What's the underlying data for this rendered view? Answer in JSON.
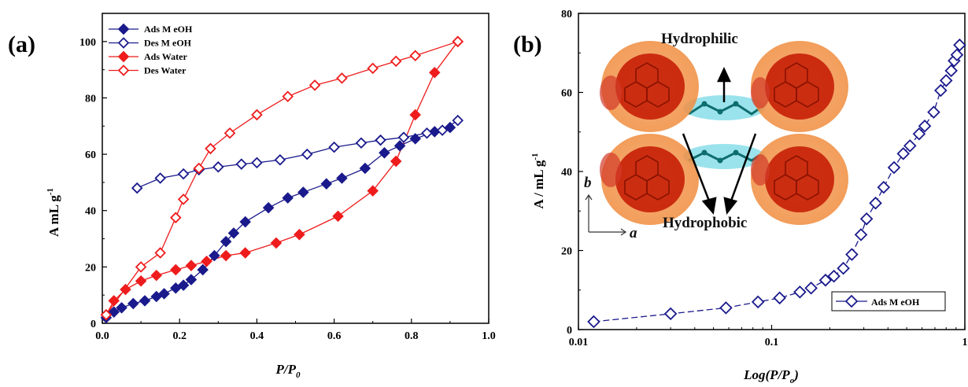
{
  "panels": {
    "a": {
      "label": "(a)"
    },
    "b": {
      "label": "(b)"
    }
  },
  "colors": {
    "meoh": "#1a1a8c",
    "water": "#ee1c1c",
    "molecule_orange": "#f08a3a",
    "molecule_red": "#c61f05",
    "molecule_cyan": "#7ad9e6"
  },
  "annotations": {
    "hydrophilic": "Hydrophilic",
    "hydrophobic": "Hydrophobic",
    "axis_b": "b",
    "axis_a": "a"
  },
  "chart_data": [
    {
      "id": "a",
      "type": "line",
      "xlabel_main": "P/P",
      "xlabel_sub": "0",
      "ylabel": "A mL g",
      "ylabel_sup": "-1",
      "xlim": [
        0.0,
        1.0
      ],
      "ylim": [
        0,
        110
      ],
      "xticks": [
        "0.0",
        "0.2",
        "0.4",
        "0.6",
        "0.8",
        "1.0"
      ],
      "yticks": [
        "0",
        "20",
        "40",
        "60",
        "80",
        "100"
      ],
      "legend_position": "top-left",
      "series": [
        {
          "name": "Ads M eOH",
          "color": "#1a1a8c",
          "filled": true,
          "x": [
            0.01,
            0.03,
            0.05,
            0.08,
            0.11,
            0.14,
            0.16,
            0.19,
            0.21,
            0.23,
            0.26,
            0.29,
            0.32,
            0.34,
            0.37,
            0.43,
            0.48,
            0.52,
            0.58,
            0.62,
            0.68,
            0.73,
            0.77,
            0.81,
            0.86,
            0.9
          ],
          "y": [
            2,
            4,
            5.5,
            7,
            8,
            9.5,
            10.5,
            12.5,
            13.5,
            15.5,
            19,
            24,
            29,
            32,
            36,
            41,
            44.5,
            46.5,
            49.5,
            51.5,
            55,
            60.5,
            63,
            65.5,
            68,
            69.5
          ]
        },
        {
          "name": "Des M eOH",
          "color": "#1a1a8c",
          "filled": false,
          "x": [
            0.09,
            0.15,
            0.21,
            0.25,
            0.3,
            0.36,
            0.4,
            0.46,
            0.53,
            0.6,
            0.67,
            0.72,
            0.78,
            0.84,
            0.88,
            0.92
          ],
          "y": [
            48,
            51.5,
            53,
            54.5,
            55.5,
            56.5,
            57,
            58,
            60,
            62.5,
            64,
            65,
            66,
            67.5,
            68.5,
            72
          ]
        },
        {
          "name": "Ads Water",
          "color": "#ee1c1c",
          "filled": true,
          "x": [
            0.01,
            0.03,
            0.06,
            0.1,
            0.14,
            0.19,
            0.23,
            0.27,
            0.32,
            0.37,
            0.45,
            0.51,
            0.61,
            0.7,
            0.76,
            0.81,
            0.86,
            0.92
          ],
          "y": [
            3,
            8,
            12,
            15,
            17,
            19,
            20.5,
            22,
            24,
            25,
            28.5,
            31.5,
            38,
            47,
            57.5,
            74,
            89,
            100
          ]
        },
        {
          "name": "Des Water",
          "color": "#ee1c1c",
          "filled": false,
          "x": [
            0.01,
            0.1,
            0.15,
            0.19,
            0.21,
            0.25,
            0.28,
            0.33,
            0.4,
            0.48,
            0.55,
            0.62,
            0.7,
            0.76,
            0.81,
            0.92
          ],
          "y": [
            3,
            20,
            25,
            37.5,
            44,
            55,
            62,
            67.5,
            74,
            80.5,
            84.5,
            87,
            90.5,
            93,
            95,
            100
          ]
        }
      ]
    },
    {
      "id": "b",
      "type": "line",
      "xscale": "log",
      "xlabel": "Log(P/P",
      "xlabel_sub": "o",
      "xlabel_close": ")",
      "ylabel": "A / mL g",
      "ylabel_sup": "-1",
      "xlim": [
        0.01,
        1.0
      ],
      "ylim": [
        0,
        80
      ],
      "xticks": [
        "0.01",
        "0.1",
        "1"
      ],
      "yticks": [
        "0",
        "20",
        "40",
        "60",
        "80"
      ],
      "legend_position": "bottom-right",
      "series": [
        {
          "name": "Ads M eOH",
          "color": "#1a1a8c",
          "filled": false,
          "x": [
            0.012,
            0.03,
            0.058,
            0.085,
            0.11,
            0.14,
            0.16,
            0.19,
            0.21,
            0.235,
            0.26,
            0.29,
            0.31,
            0.345,
            0.38,
            0.43,
            0.48,
            0.52,
            0.58,
            0.62,
            0.69,
            0.75,
            0.8,
            0.85,
            0.88,
            0.91,
            0.94
          ],
          "y": [
            2,
            4,
            5.5,
            7,
            8,
            9.5,
            10.5,
            12.5,
            13.5,
            15.5,
            19,
            24,
            28,
            32,
            36,
            41,
            44.5,
            46.5,
            49.5,
            51.5,
            55,
            60.5,
            63,
            65.5,
            68,
            69.5,
            72
          ]
        }
      ]
    }
  ]
}
